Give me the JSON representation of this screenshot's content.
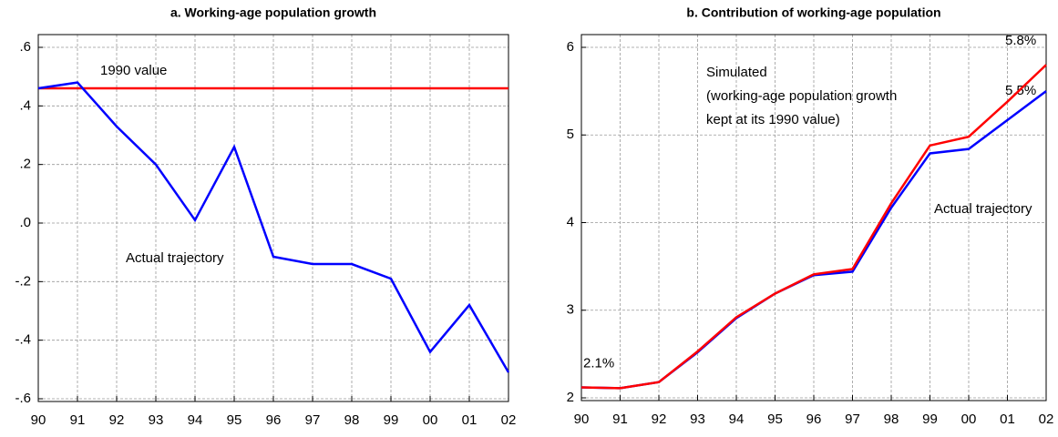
{
  "chart_data": [
    {
      "type": "line",
      "title": "a. Working-age population growth",
      "categories": [
        "90",
        "91",
        "92",
        "93",
        "94",
        "95",
        "96",
        "97",
        "98",
        "99",
        "00",
        "01",
        "02"
      ],
      "ylim": [
        -0.6,
        0.6
      ],
      "yticks": [
        {
          "value": 0.6,
          "label": ".6"
        },
        {
          "value": 0.4,
          "label": ".4"
        },
        {
          "value": 0.2,
          "label": ".2"
        },
        {
          "value": 0,
          "label": ".0"
        },
        {
          "value": -0.2,
          "label": "-.2"
        },
        {
          "value": -0.4,
          "label": "-.4"
        },
        {
          "value": -0.6,
          "label": "-.6"
        }
      ],
      "grid": true,
      "series": [
        {
          "name": [
            "1990 value"
          ],
          "color": "#ff0000",
          "values": [
            0.46,
            0.46,
            0.46,
            0.46,
            0.46,
            0.46,
            0.46,
            0.46,
            0.46,
            0.46,
            0.46,
            0.46,
            0.46
          ]
        },
        {
          "name": [
            "Actual trajectory"
          ],
          "color": "#0000ff",
          "values": [
            0.46,
            0.48,
            0.33,
            0.2,
            0.01,
            0.26,
            -0.115,
            -0.14,
            -0.14,
            -0.19,
            -0.44,
            -0.28,
            -0.51
          ]
        }
      ]
    },
    {
      "type": "line",
      "title": "b. Contribution of working-age population",
      "categories": [
        "90",
        "91",
        "92",
        "93",
        "94",
        "95",
        "96",
        "97",
        "98",
        "99",
        "00",
        "01",
        "02"
      ],
      "ylim": [
        2,
        6
      ],
      "yticks": [
        6,
        5,
        4,
        3,
        2
      ],
      "grid": true,
      "series": [
        {
          "name": [
            "Actual trajectory"
          ],
          "color": "#0000ff",
          "values": [
            2.12,
            2.11,
            2.18,
            2.52,
            2.91,
            3.19,
            3.4,
            3.44,
            4.17,
            4.79,
            4.84,
            5.17,
            5.5
          ],
          "value_labels": [
            null,
            null,
            null,
            null,
            null,
            null,
            null,
            null,
            null,
            null,
            null,
            null,
            "5.5%"
          ]
        },
        {
          "name": [
            "Simulated",
            "(working-age population growth",
            "kept at its 1990 value)"
          ],
          "color": "#ff0000",
          "values": [
            2.12,
            2.11,
            2.18,
            2.53,
            2.92,
            3.19,
            3.41,
            3.47,
            4.22,
            4.88,
            4.98,
            5.38,
            5.8
          ],
          "value_labels": [
            "2.1%",
            null,
            null,
            null,
            null,
            null,
            null,
            null,
            null,
            null,
            null,
            null,
            "5.8%"
          ]
        }
      ]
    }
  ]
}
